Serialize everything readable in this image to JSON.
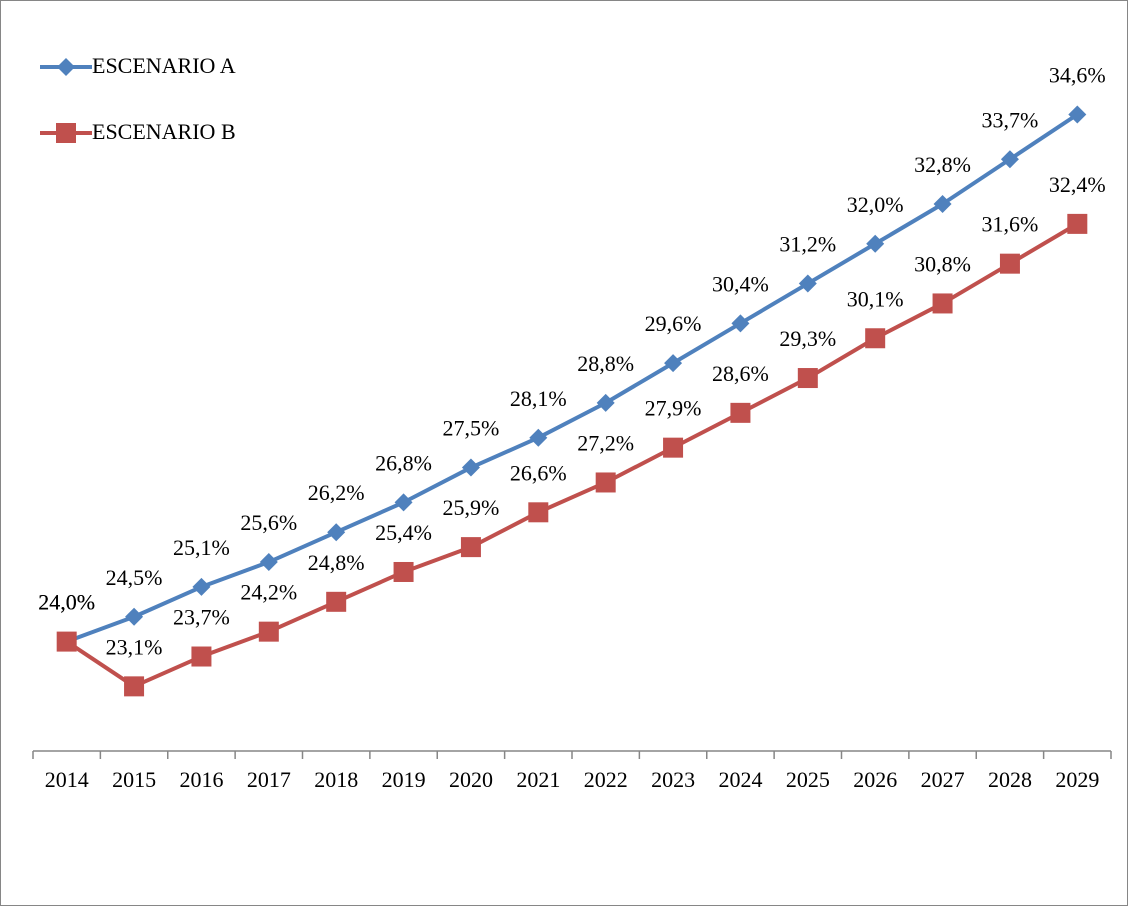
{
  "chart_data": {
    "type": "line",
    "categories": [
      "2014",
      "2015",
      "2016",
      "2017",
      "2018",
      "2019",
      "2020",
      "2021",
      "2022",
      "2023",
      "2024",
      "2025",
      "2026",
      "2027",
      "2028",
      "2029"
    ],
    "series": [
      {
        "name": "ESCENARIO A",
        "color": "#4f81bd",
        "marker": "diamond",
        "values": [
          24.0,
          24.5,
          25.1,
          25.6,
          26.2,
          26.8,
          27.5,
          28.1,
          28.8,
          29.6,
          30.4,
          31.2,
          32.0,
          32.8,
          33.7,
          34.6
        ],
        "value_labels": [
          "24,0%",
          "24,5%",
          "25,1%",
          "25,6%",
          "26,2%",
          "26,8%",
          "27,5%",
          "28,1%",
          "28,8%",
          "29,6%",
          "30,4%",
          "31,2%",
          "32,0%",
          "32,8%",
          "33,7%",
          "34,6%"
        ]
      },
      {
        "name": "ESCENARIO B",
        "color": "#c0504d",
        "marker": "square",
        "values": [
          24.0,
          23.1,
          23.7,
          24.2,
          24.8,
          25.4,
          25.9,
          26.6,
          27.2,
          27.9,
          28.6,
          29.3,
          30.1,
          30.8,
          31.6,
          32.4
        ],
        "value_labels": [
          "24,0%",
          "23,1%",
          "23,7%",
          "24,2%",
          "24,8%",
          "25,4%",
          "25,9%",
          "26,6%",
          "27,2%",
          "27,9%",
          "28,6%",
          "29,3%",
          "30,1%",
          "30,8%",
          "31,6%",
          "32,4%"
        ]
      }
    ],
    "ylim": [
      21.8,
      36.5
    ],
    "legend": "top-left"
  }
}
